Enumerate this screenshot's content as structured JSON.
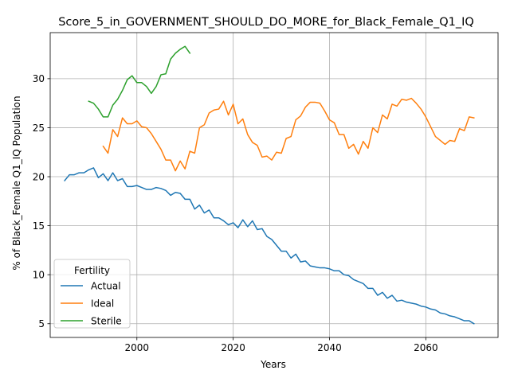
{
  "chart_data": {
    "type": "line",
    "title": "Score_5_in_GOVERNMENT_SHOULD_DO_MORE_for_Black_Female_Q1_IQ",
    "xlabel": "Years",
    "ylabel": "% of Black_Female Q1_IQ Population",
    "xlim": [
      1982,
      2075
    ],
    "ylim": [
      3.6,
      34.7
    ],
    "xticks": [
      "2000",
      "2020",
      "2040",
      "2060"
    ],
    "xtick_values": [
      2000,
      2020,
      2040,
      2060
    ],
    "yticks": [
      "5",
      "10",
      "15",
      "20",
      "25",
      "30"
    ],
    "ytick_values": [
      5,
      10,
      15,
      20,
      25,
      30
    ],
    "grid": true,
    "legend": {
      "title": "Fertility",
      "position": "lower-left"
    },
    "series": [
      {
        "name": "Actual",
        "color": "#1f77b4",
        "x": [
          1985,
          1986,
          1987,
          1988,
          1989,
          1990,
          1991,
          1992,
          1993,
          1994,
          1995,
          1996,
          1997,
          1998,
          1999,
          2000,
          2001,
          2002,
          2003,
          2004,
          2005,
          2006,
          2007,
          2008,
          2009,
          2010,
          2011,
          2012,
          2013,
          2014,
          2015,
          2016,
          2017,
          2018,
          2019,
          2020,
          2021,
          2022,
          2023,
          2024,
          2025,
          2026,
          2027,
          2028,
          2029,
          2030,
          2031,
          2032,
          2033,
          2034,
          2035,
          2036,
          2037,
          2038,
          2039,
          2040,
          2041,
          2042,
          2043,
          2044,
          2045,
          2046,
          2047,
          2048,
          2049,
          2050,
          2051,
          2052,
          2053,
          2054,
          2055,
          2056,
          2057,
          2058,
          2059,
          2060,
          2061,
          2062,
          2063,
          2064,
          2065,
          2066,
          2067,
          2068,
          2069,
          2070
        ],
        "values": [
          19.6,
          20.2,
          20.2,
          20.4,
          20.4,
          20.7,
          20.9,
          19.9,
          20.3,
          19.6,
          20.4,
          19.6,
          19.8,
          19.0,
          19.0,
          19.1,
          18.9,
          18.7,
          18.7,
          18.9,
          18.8,
          18.6,
          18.1,
          18.4,
          18.3,
          17.7,
          17.7,
          16.7,
          17.1,
          16.3,
          16.6,
          15.8,
          15.8,
          15.5,
          15.1,
          15.3,
          14.8,
          15.6,
          14.9,
          15.5,
          14.6,
          14.7,
          13.9,
          13.6,
          13.0,
          12.4,
          12.4,
          11.7,
          12.1,
          11.3,
          11.4,
          10.9,
          10.8,
          10.7,
          10.7,
          10.6,
          10.4,
          10.4,
          10.0,
          9.9,
          9.5,
          9.3,
          9.1,
          8.6,
          8.6,
          7.9,
          8.2,
          7.6,
          7.9,
          7.3,
          7.4,
          7.2,
          7.1,
          7.0,
          6.8,
          6.7,
          6.5,
          6.4,
          6.1,
          6.0,
          5.8,
          5.7,
          5.5,
          5.3,
          5.3,
          5.0
        ]
      },
      {
        "name": "Ideal",
        "color": "#ff7f0e",
        "x": [
          1993,
          1994,
          1995,
          1996,
          1997,
          1998,
          1999,
          2000,
          2001,
          2002,
          2003,
          2004,
          2005,
          2006,
          2007,
          2008,
          2009,
          2010,
          2011,
          2012,
          2013,
          2014,
          2015,
          2016,
          2017,
          2018,
          2019,
          2020,
          2021,
          2022,
          2023,
          2024,
          2025,
          2026,
          2027,
          2028,
          2029,
          2030,
          2031,
          2032,
          2033,
          2034,
          2035,
          2036,
          2037,
          2038,
          2039,
          2040,
          2041,
          2042,
          2043,
          2044,
          2045,
          2046,
          2047,
          2048,
          2049,
          2050,
          2051,
          2052,
          2053,
          2054,
          2055,
          2056,
          2057,
          2058,
          2059,
          2060,
          2061,
          2062,
          2063,
          2064,
          2065,
          2066,
          2067,
          2068,
          2069,
          2070
        ],
        "values": [
          23.1,
          22.4,
          24.8,
          24.1,
          26.0,
          25.4,
          25.4,
          25.7,
          25.1,
          25.0,
          24.4,
          23.6,
          22.8,
          21.7,
          21.7,
          20.6,
          21.6,
          20.8,
          22.6,
          22.4,
          25.0,
          25.3,
          26.5,
          26.8,
          26.9,
          27.7,
          26.3,
          27.4,
          25.4,
          25.9,
          24.3,
          23.5,
          23.2,
          22.0,
          22.1,
          21.7,
          22.5,
          22.4,
          23.9,
          24.1,
          25.8,
          26.2,
          27.1,
          27.6,
          27.6,
          27.5,
          26.7,
          25.8,
          25.5,
          24.3,
          24.3,
          22.9,
          23.3,
          22.3,
          23.6,
          22.9,
          25.0,
          24.5,
          26.3,
          25.9,
          27.4,
          27.2,
          27.9,
          27.8,
          28.0,
          27.5,
          26.9,
          26.1,
          25.1,
          24.1,
          23.7,
          23.3,
          23.7,
          23.6,
          24.9,
          24.7,
          26.1,
          26.0
        ]
      },
      {
        "name": "Sterile",
        "color": "#2ca02c",
        "x": [
          1990,
          1991,
          1992,
          1993,
          1994,
          1995,
          1996,
          1997,
          1998,
          1999,
          2000,
          2001,
          2002,
          2003,
          2004,
          2005,
          2006,
          2007,
          2008,
          2009,
          2010,
          2011
        ],
        "values": [
          27.7,
          27.5,
          26.9,
          26.1,
          26.1,
          27.3,
          27.9,
          28.8,
          29.9,
          30.3,
          29.6,
          29.6,
          29.2,
          28.5,
          29.2,
          30.4,
          30.5,
          32.0,
          32.6,
          33.0,
          33.3,
          32.6
        ]
      }
    ]
  }
}
